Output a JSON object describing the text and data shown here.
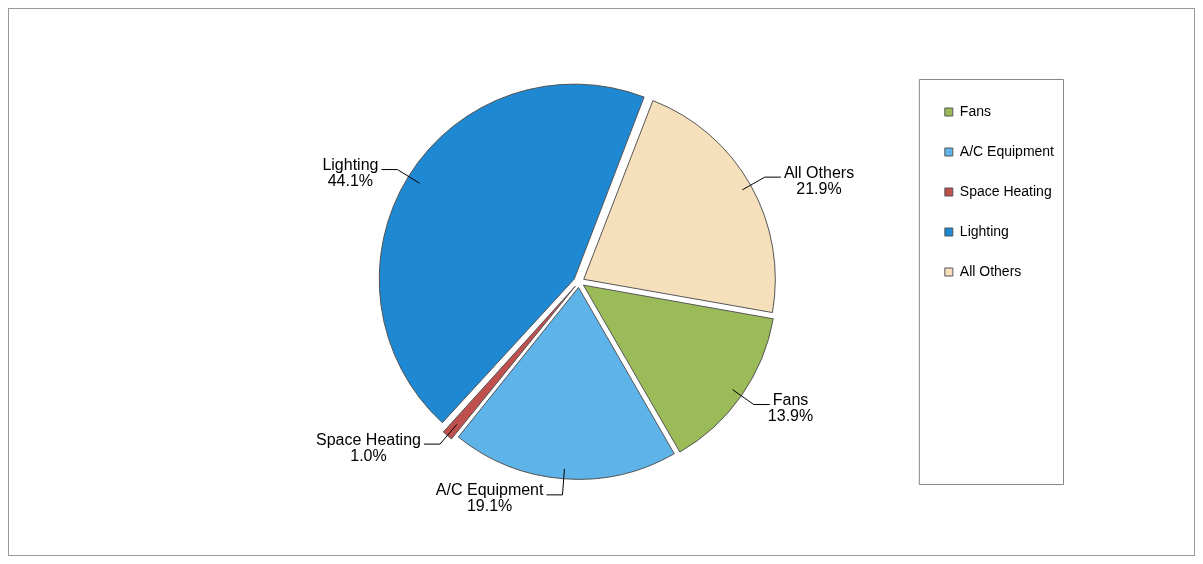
{
  "chart_data": {
    "type": "pie",
    "categories": [
      "Fans",
      "A/C Equipment",
      "Space Heating",
      "Lighting",
      "All Others"
    ],
    "values": [
      13.9,
      19.1,
      1.0,
      44.1,
      21.9
    ],
    "colors": [
      "#9bbb59",
      "#5eb3e9",
      "#c0504d",
      "#1e88d2",
      "#f6e0bc"
    ],
    "value_labels": [
      "13.9%",
      "19.1%",
      "1.0%",
      "44.1%",
      "21.9%"
    ],
    "legend": "right"
  }
}
